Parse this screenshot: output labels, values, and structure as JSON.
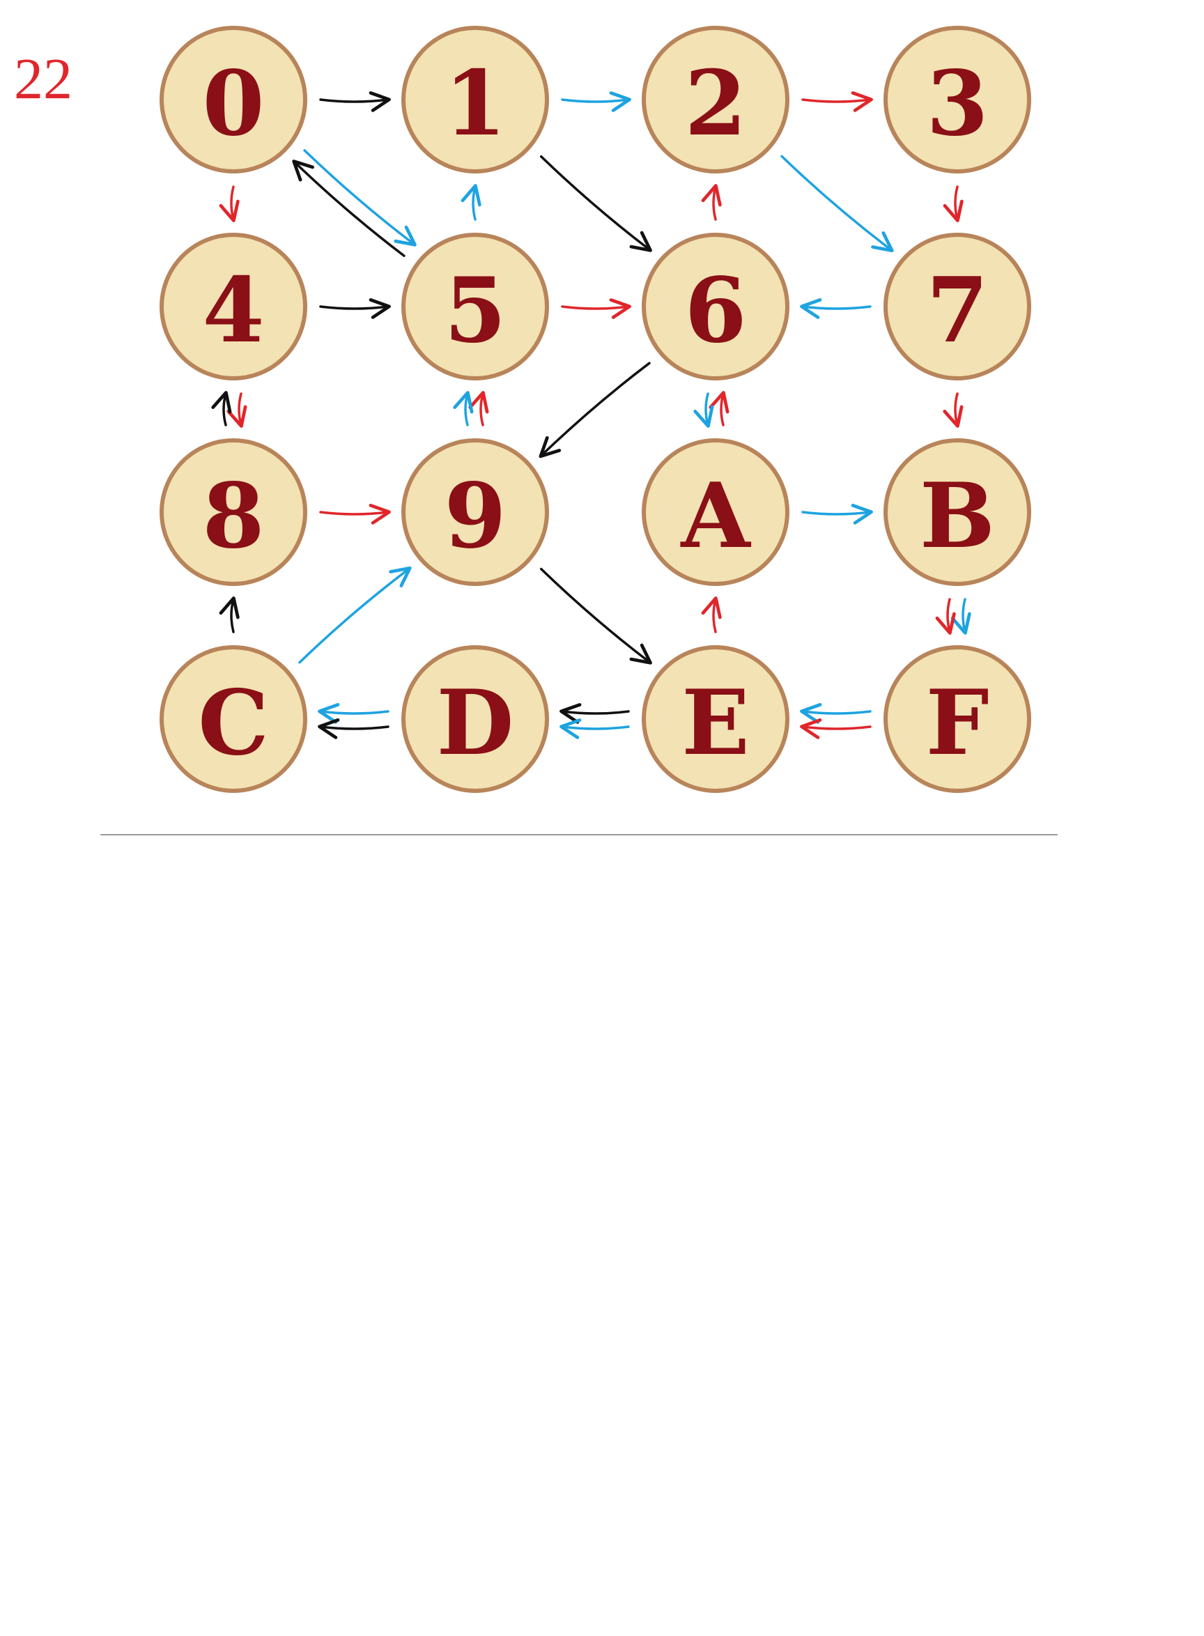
{
  "page_number": "22",
  "colors": {
    "node_fill": "#f3e2b3",
    "node_border": "#b8845a",
    "label": "#8a0f16",
    "red": "#e0262b",
    "blue": "#1ea3e0",
    "black": "#111111"
  },
  "nodes": [
    "0",
    "1",
    "2",
    "3",
    "4",
    "5",
    "6",
    "7",
    "8",
    "9",
    "A",
    "B",
    "C",
    "D",
    "E",
    "F"
  ],
  "edges": [
    {
      "from": "0",
      "to": "1",
      "color": "black"
    },
    {
      "from": "1",
      "to": "2",
      "color": "blue"
    },
    {
      "from": "2",
      "to": "3",
      "color": "red"
    },
    {
      "from": "0",
      "to": "4",
      "color": "red"
    },
    {
      "from": "0",
      "to": "5",
      "color": "blue"
    },
    {
      "from": "5",
      "to": "0",
      "color": "black"
    },
    {
      "from": "5",
      "to": "1",
      "color": "blue"
    },
    {
      "from": "1",
      "to": "6",
      "color": "black"
    },
    {
      "from": "6",
      "to": "2",
      "color": "red"
    },
    {
      "from": "2",
      "to": "7",
      "color": "blue"
    },
    {
      "from": "3",
      "to": "7",
      "color": "red"
    },
    {
      "from": "4",
      "to": "5",
      "color": "black"
    },
    {
      "from": "5",
      "to": "6",
      "color": "red"
    },
    {
      "from": "7",
      "to": "6",
      "color": "blue"
    },
    {
      "from": "4",
      "to": "8",
      "color": "red"
    },
    {
      "from": "8",
      "to": "4",
      "color": "black"
    },
    {
      "from": "9",
      "to": "5",
      "color": "red"
    },
    {
      "from": "9",
      "to": "5",
      "color": "blue"
    },
    {
      "from": "6",
      "to": "9",
      "color": "black"
    },
    {
      "from": "A",
      "to": "6",
      "color": "red"
    },
    {
      "from": "6",
      "to": "A",
      "color": "blue"
    },
    {
      "from": "7",
      "to": "B",
      "color": "red"
    },
    {
      "from": "8",
      "to": "9",
      "color": "red"
    },
    {
      "from": "A",
      "to": "B",
      "color": "blue"
    },
    {
      "from": "C",
      "to": "8",
      "color": "black"
    },
    {
      "from": "C",
      "to": "9",
      "color": "blue"
    },
    {
      "from": "9",
      "to": "E",
      "color": "black"
    },
    {
      "from": "E",
      "to": "A",
      "color": "red"
    },
    {
      "from": "B",
      "to": "F",
      "color": "blue"
    },
    {
      "from": "B",
      "to": "F",
      "color": "red"
    },
    {
      "from": "D",
      "to": "C",
      "color": "blue"
    },
    {
      "from": "D",
      "to": "C",
      "color": "black"
    },
    {
      "from": "E",
      "to": "D",
      "color": "black"
    },
    {
      "from": "E",
      "to": "D",
      "color": "blue"
    },
    {
      "from": "F",
      "to": "E",
      "color": "blue"
    },
    {
      "from": "F",
      "to": "E",
      "color": "red"
    }
  ]
}
